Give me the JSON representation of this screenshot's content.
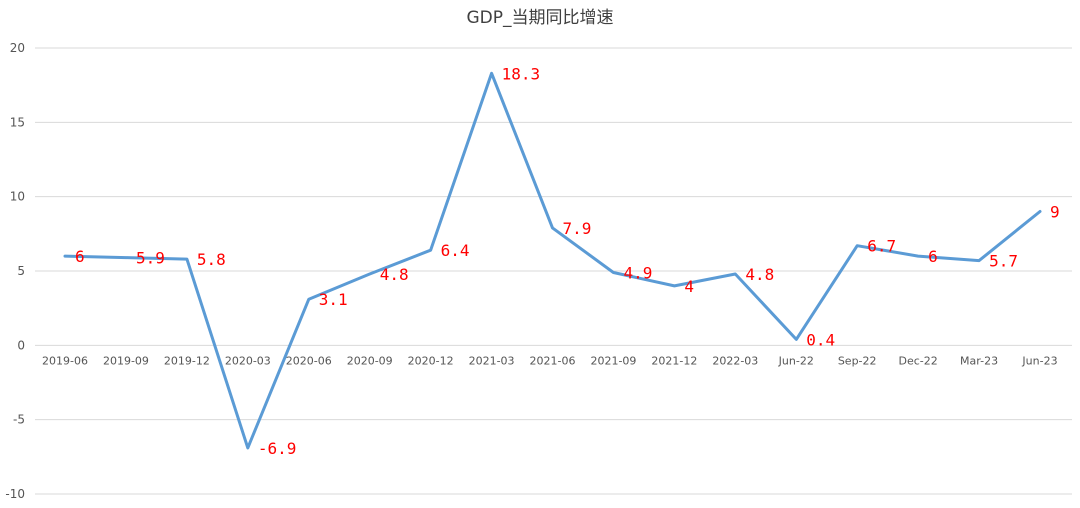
{
  "chart_data": {
    "type": "line",
    "title": "GDP_当期同比增速",
    "categories": [
      "2019-06",
      "2019-09",
      "2019-12",
      "2020-03",
      "2020-06",
      "2020-09",
      "2020-12",
      "2021-03",
      "2021-06",
      "2021-09",
      "2021-12",
      "2022-03",
      "Jun-22",
      "Sep-22",
      "Dec-22",
      "Mar-23",
      "Jun-23"
    ],
    "series": [
      {
        "values": [
          6,
          5.9,
          5.8,
          -6.9,
          3.1,
          4.8,
          6.4,
          18.3,
          7.9,
          4.9,
          4,
          4.8,
          0.4,
          6.7,
          6,
          5.7,
          9
        ],
        "labels": [
          "6",
          "5.9",
          "5.8",
          "-6.9",
          "3.1",
          "4.8",
          "6.4",
          "18.3",
          "7.9",
          "4.9",
          "4",
          "4.8",
          "0.4",
          "6.7",
          "6",
          "5.7",
          "9"
        ]
      }
    ],
    "ylim": [
      -10,
      20
    ],
    "yticks": [
      "-10",
      "-5",
      "0",
      "5",
      "10",
      "15",
      "20"
    ],
    "ytick_values": [
      -10,
      -5,
      0,
      5,
      10,
      15,
      20
    ],
    "grid": true,
    "legend": "none",
    "colors": {
      "line": "#5b9bd5",
      "label": "#ff0000",
      "grid": "#d9d9d9"
    }
  }
}
